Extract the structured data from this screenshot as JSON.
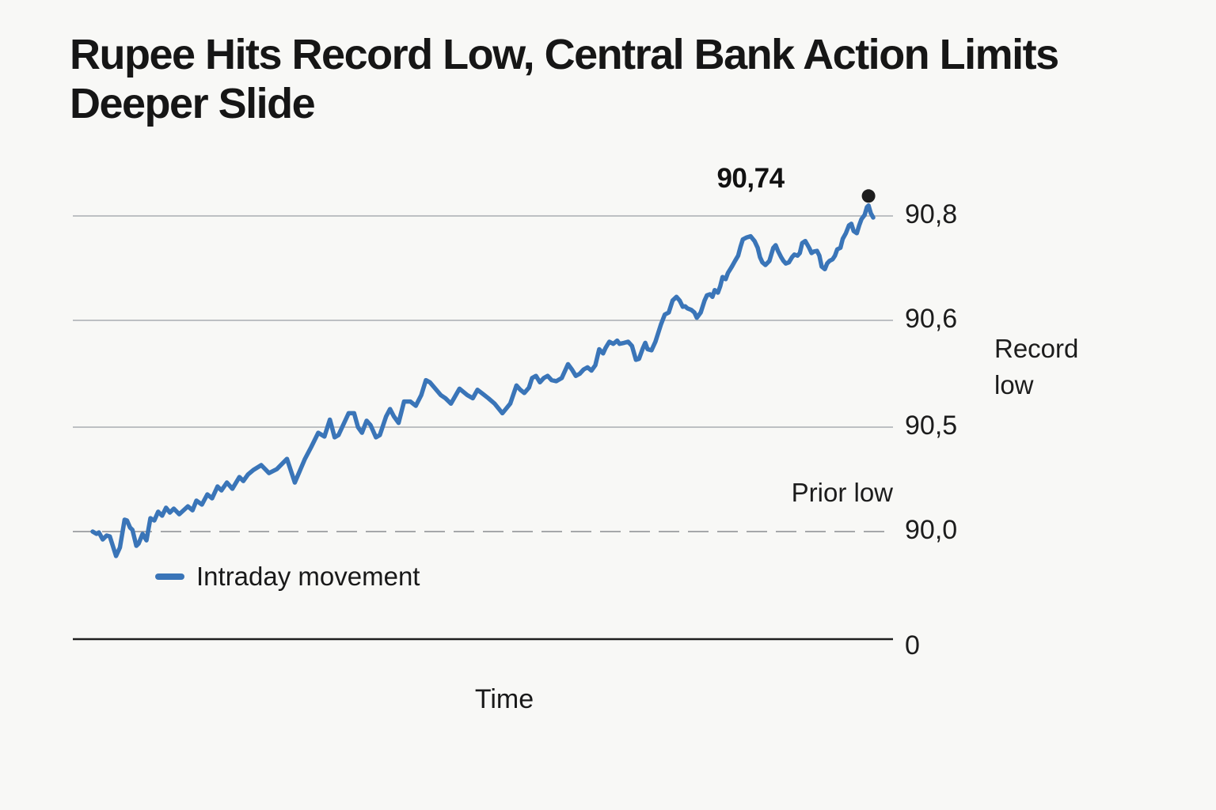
{
  "header": {
    "title_line1": "Rupee Hits Record Low, Central Bank Action Limits",
    "title_line2": "Deeper Slide"
  },
  "chart_data": {
    "type": "line",
    "title": "Rupee Hits Record Low, Central Bank Action Limits Deeper Slide",
    "xlabel": "Time",
    "ylabel": "",
    "grid": true,
    "legend_position": "bottom-left",
    "legend": [
      {
        "label": "Intraday movement",
        "color": "#3a75b8"
      }
    ],
    "yticks": [
      {
        "label": "90,8",
        "value": 90.8,
        "style": "solid"
      },
      {
        "label": "90,6",
        "value": 90.6,
        "style": "solid"
      },
      {
        "label": "90,5",
        "value": 90.5,
        "style": "solid"
      },
      {
        "label": "90,0",
        "value": 90.0,
        "style": "dashed"
      },
      {
        "label": "0",
        "value": 0,
        "style": "axis"
      }
    ],
    "annotations": {
      "peak": {
        "label": "90,74",
        "value": 90.74
      },
      "record_low": "Record low",
      "prior_low": "Prior low"
    },
    "series": [
      {
        "name": "Intraday movement",
        "color": "#3a75b8",
        "points": [
          [
            0,
            90.0
          ],
          [
            0.5,
            89.989
          ],
          [
            0.8,
            89.996
          ],
          [
            1.3,
            89.962
          ],
          [
            1.8,
            89.981
          ],
          [
            2.2,
            89.977
          ],
          [
            3.0,
            89.883
          ],
          [
            3.5,
            89.924
          ],
          [
            4.1,
            90.057
          ],
          [
            4.4,
            90.053
          ],
          [
            4.8,
            90.019
          ],
          [
            5.1,
            90.008
          ],
          [
            5.6,
            89.932
          ],
          [
            5.9,
            89.943
          ],
          [
            6.4,
            89.989
          ],
          [
            6.9,
            89.958
          ],
          [
            7.4,
            90.064
          ],
          [
            7.9,
            90.053
          ],
          [
            8.4,
            90.095
          ],
          [
            8.9,
            90.076
          ],
          [
            9.4,
            90.114
          ],
          [
            9.9,
            90.091
          ],
          [
            10.4,
            90.11
          ],
          [
            11.1,
            90.083
          ],
          [
            12.2,
            90.121
          ],
          [
            12.8,
            90.102
          ],
          [
            13.3,
            90.148
          ],
          [
            14.0,
            90.129
          ],
          [
            14.7,
            90.178
          ],
          [
            15.3,
            90.159
          ],
          [
            16.0,
            90.216
          ],
          [
            16.5,
            90.197
          ],
          [
            17.2,
            90.235
          ],
          [
            17.9,
            90.205
          ],
          [
            18.8,
            90.261
          ],
          [
            19.3,
            90.242
          ],
          [
            19.9,
            90.273
          ],
          [
            20.6,
            90.295
          ],
          [
            21.6,
            90.318
          ],
          [
            22.6,
            90.28
          ],
          [
            23.6,
            90.299
          ],
          [
            24.9,
            90.348
          ],
          [
            25.9,
            90.235
          ],
          [
            27.2,
            90.348
          ],
          [
            28.0,
            90.405
          ],
          [
            28.9,
            90.473
          ],
          [
            29.7,
            90.455
          ],
          [
            30.4,
            90.507
          ],
          [
            31.0,
            90.451
          ],
          [
            31.5,
            90.462
          ],
          [
            32.8,
            90.513
          ],
          [
            33.5,
            90.513
          ],
          [
            34.0,
            90.5
          ],
          [
            34.5,
            90.473
          ],
          [
            35.1,
            90.506
          ],
          [
            35.6,
            90.502
          ],
          [
            36.3,
            90.451
          ],
          [
            36.8,
            90.462
          ],
          [
            37.6,
            90.51
          ],
          [
            38.1,
            90.517
          ],
          [
            38.6,
            90.51
          ],
          [
            39.2,
            90.504
          ],
          [
            39.9,
            90.524
          ],
          [
            40.7,
            90.524
          ],
          [
            41.4,
            90.52
          ],
          [
            42.1,
            90.53
          ],
          [
            42.7,
            90.544
          ],
          [
            43.2,
            90.542
          ],
          [
            43.9,
            90.536
          ],
          [
            44.6,
            90.53
          ],
          [
            45.2,
            90.527
          ],
          [
            45.9,
            90.522
          ],
          [
            47.0,
            90.536
          ],
          [
            48.0,
            90.53
          ],
          [
            48.7,
            90.527
          ],
          [
            49.3,
            90.535
          ],
          [
            50.0,
            90.531
          ],
          [
            50.7,
            90.527
          ],
          [
            51.5,
            90.522
          ],
          [
            52.5,
            90.513
          ],
          [
            53.5,
            90.522
          ],
          [
            54.3,
            90.539
          ],
          [
            54.8,
            90.535
          ],
          [
            55.3,
            90.532
          ],
          [
            55.9,
            90.537
          ],
          [
            56.3,
            90.546
          ],
          [
            56.8,
            90.548
          ],
          [
            57.3,
            90.542
          ],
          [
            57.8,
            90.546
          ],
          [
            58.3,
            90.548
          ],
          [
            58.8,
            90.544
          ],
          [
            59.4,
            90.543
          ],
          [
            60.1,
            90.546
          ],
          [
            60.9,
            90.559
          ],
          [
            61.4,
            90.554
          ],
          [
            61.9,
            90.548
          ],
          [
            62.4,
            90.55
          ],
          [
            62.9,
            90.554
          ],
          [
            63.4,
            90.556
          ],
          [
            63.9,
            90.553
          ],
          [
            64.4,
            90.558
          ],
          [
            64.9,
            90.573
          ],
          [
            65.4,
            90.569
          ],
          [
            65.7,
            90.574
          ],
          [
            66.2,
            90.58
          ],
          [
            66.7,
            90.578
          ],
          [
            67.2,
            90.581
          ],
          [
            67.5,
            90.578
          ],
          [
            68.1,
            90.579
          ],
          [
            68.6,
            90.58
          ],
          [
            69.1,
            90.576
          ],
          [
            69.6,
            90.563
          ],
          [
            70.0,
            90.564
          ],
          [
            70.5,
            90.574
          ],
          [
            70.8,
            90.579
          ],
          [
            71.1,
            90.573
          ],
          [
            71.6,
            90.572
          ],
          [
            72.1,
            90.58
          ],
          [
            72.8,
            90.596
          ],
          [
            73.3,
            90.611
          ],
          [
            73.8,
            90.615
          ],
          [
            74.3,
            90.638
          ],
          [
            74.8,
            90.645
          ],
          [
            75.2,
            90.638
          ],
          [
            75.6,
            90.626
          ],
          [
            75.9,
            90.627
          ],
          [
            76.2,
            90.623
          ],
          [
            76.7,
            90.62
          ],
          [
            77.1,
            90.615
          ],
          [
            77.4,
            90.605
          ],
          [
            77.9,
            90.615
          ],
          [
            78.4,
            90.638
          ],
          [
            78.7,
            90.648
          ],
          [
            79.1,
            90.65
          ],
          [
            79.4,
            90.645
          ],
          [
            79.7,
            90.658
          ],
          [
            80.1,
            90.653
          ],
          [
            80.4,
            90.665
          ],
          [
            80.7,
            90.683
          ],
          [
            81.1,
            90.679
          ],
          [
            81.4,
            90.691
          ],
          [
            81.9,
            90.703
          ],
          [
            82.3,
            90.714
          ],
          [
            82.7,
            90.724
          ],
          [
            83.0,
            90.741
          ],
          [
            83.3,
            90.755
          ],
          [
            83.8,
            90.759
          ],
          [
            84.3,
            90.761
          ],
          [
            84.8,
            90.752
          ],
          [
            85.2,
            90.739
          ],
          [
            85.5,
            90.721
          ],
          [
            85.8,
            90.711
          ],
          [
            86.2,
            90.706
          ],
          [
            86.7,
            90.714
          ],
          [
            87.2,
            90.739
          ],
          [
            87.5,
            90.744
          ],
          [
            87.8,
            90.733
          ],
          [
            88.2,
            90.721
          ],
          [
            88.5,
            90.714
          ],
          [
            88.8,
            90.709
          ],
          [
            89.2,
            90.711
          ],
          [
            89.6,
            90.721
          ],
          [
            89.9,
            90.726
          ],
          [
            90.3,
            90.724
          ],
          [
            90.6,
            90.729
          ],
          [
            90.9,
            90.748
          ],
          [
            91.3,
            90.752
          ],
          [
            91.8,
            90.739
          ],
          [
            92.1,
            90.729
          ],
          [
            92.4,
            90.732
          ],
          [
            92.8,
            90.733
          ],
          [
            93.1,
            90.724
          ],
          [
            93.4,
            90.703
          ],
          [
            93.8,
            90.698
          ],
          [
            94.1,
            90.709
          ],
          [
            94.4,
            90.714
          ],
          [
            94.8,
            90.717
          ],
          [
            95.1,
            90.724
          ],
          [
            95.4,
            90.736
          ],
          [
            95.8,
            90.739
          ],
          [
            96.1,
            90.756
          ],
          [
            96.5,
            90.767
          ],
          [
            96.9,
            90.782
          ],
          [
            97.2,
            90.785
          ],
          [
            97.5,
            90.771
          ],
          [
            97.9,
            90.767
          ],
          [
            98.2,
            90.782
          ],
          [
            98.5,
            90.794
          ],
          [
            98.9,
            90.802
          ],
          [
            99.2,
            90.817
          ],
          [
            99.4,
            90.82
          ],
          [
            99.7,
            90.805
          ],
          [
            100,
            90.797
          ]
        ]
      }
    ]
  },
  "colors": {
    "background": "#f8f8f6",
    "line": "#3a75b8",
    "gridline": "#bdc0c3",
    "dashed_gridline": "#a6a8aa",
    "baseline": "#1f1f1f",
    "marker": "#1d1d1d",
    "text": "#161616"
  }
}
